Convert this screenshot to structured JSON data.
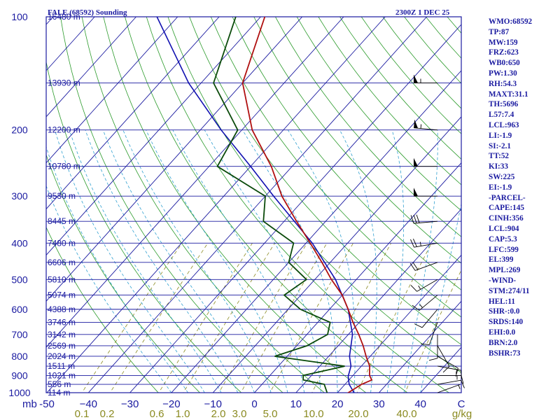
{
  "header": {
    "left_title": "FALE (68592) Sounding",
    "right_title": "2300Z  1 DEC 25"
  },
  "side_panel": [
    "WMO:68592",
    "TP:87",
    "MW:159",
    "FRZ:623",
    "WB0:650",
    "PW:1.30",
    "RH:54.3",
    "MAXT:31.1",
    "TH:5696",
    "L57:7.4",
    "LCL:963",
    "LI:-1.9",
    "SI:-2.1",
    "TT:52",
    "KI:33",
    "SW:225",
    "EI:-1.9",
    "-PARCEL-",
    "CAPE:145",
    "CINH:356",
    "LCL:904",
    "CAP:5.3",
    "LFC:599",
    "EL:399",
    "MPL:269",
    "-WIND-",
    "STM:274/11",
    "HEL:11",
    "SHR-:0.0",
    "SRDS:140",
    "EHI:0.0",
    "BRN:2.0",
    "BSHR:73"
  ],
  "colors": {
    "isobar": "#1a1aa0",
    "isotherm": "#1a1aa0",
    "dry_adiabat": "#2a9a2a",
    "moist_adiabat": "#30a0d0",
    "mixing_ratio": "#8a8a20",
    "temperature": "#b01010",
    "dewpoint": "#0a4a0a",
    "parcel": "#1010b0",
    "wind_barb": "#000000"
  },
  "chart_data": {
    "type": "skew-t",
    "title": "FALE (68592) Sounding",
    "xlabel": "",
    "ylabel": "mb",
    "xlim": [
      -50,
      50
    ],
    "pressure_levels": [
      100,
      200,
      300,
      400,
      500,
      600,
      700,
      800,
      900,
      1000
    ],
    "pressure_labels": [
      "100",
      "200",
      "300",
      "400",
      "500",
      "600",
      "700",
      "800",
      "900",
      "1000"
    ],
    "y_axis_unit_label": "mb",
    "temperature_ticks": [
      -50,
      -40,
      -30,
      -20,
      -10,
      0,
      10,
      20,
      30,
      40
    ],
    "temperature_tick_labels": [
      "-50",
      "−40",
      "−30",
      "−20",
      "−10",
      "0",
      "10",
      "20",
      "30",
      "40"
    ],
    "temperature_unit_label": "C",
    "mixing_ratio_labels": [
      "0.1",
      "0.2",
      "0.6",
      "1.0",
      "2.0",
      "3.0",
      "5.0",
      "10.0",
      "20.0",
      "40.0"
    ],
    "mixing_ratio_unit": "g/kg",
    "heights": [
      {
        "p": 100,
        "label": "16480 m"
      },
      {
        "p": 150,
        "label": "13930 m"
      },
      {
        "p": 200,
        "label": "12200 m"
      },
      {
        "p": 250,
        "label": "10780 m"
      },
      {
        "p": 300,
        "label": "9530 m"
      },
      {
        "p": 350,
        "label": "8445 m"
      },
      {
        "p": 400,
        "label": "7480 m"
      },
      {
        "p": 450,
        "label": "6606 m"
      },
      {
        "p": 500,
        "label": "5810 m"
      },
      {
        "p": 550,
        "label": "5074 m"
      },
      {
        "p": 600,
        "label": "4388 m"
      },
      {
        "p": 650,
        "label": "3746 m"
      },
      {
        "p": 700,
        "label": "3142 m"
      },
      {
        "p": 750,
        "label": "2569 m"
      },
      {
        "p": 800,
        "label": "2024 m"
      },
      {
        "p": 850,
        "label": "1511 m"
      },
      {
        "p": 900,
        "label": "1021 m"
      },
      {
        "p": 950,
        "label": "556 m"
      },
      {
        "p": 1000,
        "label": "114 m"
      }
    ],
    "temperature_profile": [
      [
        1005,
        23.0
      ],
      [
        1000,
        22.6
      ],
      [
        950,
        24.0
      ],
      [
        925,
        25.5
      ],
      [
        900,
        24.0
      ],
      [
        850,
        22.0
      ],
      [
        800,
        19.0
      ],
      [
        750,
        16.0
      ],
      [
        700,
        12.5
      ],
      [
        650,
        8.5
      ],
      [
        600,
        4.5
      ],
      [
        550,
        0.0
      ],
      [
        500,
        -6.0
      ],
      [
        450,
        -12.0
      ],
      [
        400,
        -19.0
      ],
      [
        350,
        -27.0
      ],
      [
        300,
        -36.0
      ],
      [
        250,
        -45.0
      ],
      [
        200,
        -57.5
      ],
      [
        150,
        -70.0
      ],
      [
        100,
        -79.0
      ]
    ],
    "dewpoint_profile": [
      [
        1005,
        17.5
      ],
      [
        1000,
        17.5
      ],
      [
        950,
        15.0
      ],
      [
        925,
        9.0
      ],
      [
        900,
        8.0
      ],
      [
        850,
        16.0
      ],
      [
        800,
        -3.0
      ],
      [
        750,
        2.5
      ],
      [
        700,
        5.0
      ],
      [
        650,
        3.0
      ],
      [
        600,
        -7.0
      ],
      [
        550,
        -14.0
      ],
      [
        500,
        -12.0
      ],
      [
        450,
        -20.0
      ],
      [
        400,
        -23.0
      ],
      [
        350,
        -35.0
      ],
      [
        300,
        -40.0
      ],
      [
        250,
        -58.0
      ],
      [
        200,
        -61.0
      ],
      [
        150,
        -77.0
      ],
      [
        100,
        -86.0
      ]
    ],
    "parcel_profile": [
      [
        1005,
        25.0
      ],
      [
        1000,
        24.0
      ],
      [
        950,
        21.0
      ],
      [
        904,
        19.0
      ],
      [
        850,
        17.5
      ],
      [
        800,
        15.0
      ],
      [
        700,
        11.0
      ],
      [
        600,
        4.5
      ],
      [
        500,
        -5.0
      ],
      [
        400,
        -18.5
      ],
      [
        300,
        -38.0
      ],
      [
        250,
        -50.0
      ],
      [
        200,
        -65.0
      ],
      [
        150,
        -83.0
      ],
      [
        100,
        -105.0
      ]
    ],
    "wind_barbs": [
      {
        "p": 150,
        "dir": 270,
        "kt": 55
      },
      {
        "p": 200,
        "dir": 275,
        "kt": 55
      },
      {
        "p": 250,
        "dir": 270,
        "kt": 50
      },
      {
        "p": 300,
        "dir": 270,
        "kt": 50
      },
      {
        "p": 350,
        "dir": 265,
        "kt": 30
      },
      {
        "p": 400,
        "dir": 260,
        "kt": 25
      },
      {
        "p": 450,
        "dir": 250,
        "kt": 20
      },
      {
        "p": 500,
        "dir": 240,
        "kt": 15
      },
      {
        "p": 550,
        "dir": 230,
        "kt": 15
      },
      {
        "p": 600,
        "dir": 220,
        "kt": 10
      },
      {
        "p": 650,
        "dir": 200,
        "kt": 10
      },
      {
        "p": 700,
        "dir": 180,
        "kt": 10
      },
      {
        "p": 750,
        "dir": 150,
        "kt": 10
      },
      {
        "p": 800,
        "dir": 120,
        "kt": 10
      },
      {
        "p": 850,
        "dir": 100,
        "kt": 15
      },
      {
        "p": 900,
        "dir": 90,
        "kt": 15
      },
      {
        "p": 950,
        "dir": 80,
        "kt": 10
      },
      {
        "p": 1000,
        "dir": 70,
        "kt": 5
      }
    ]
  }
}
